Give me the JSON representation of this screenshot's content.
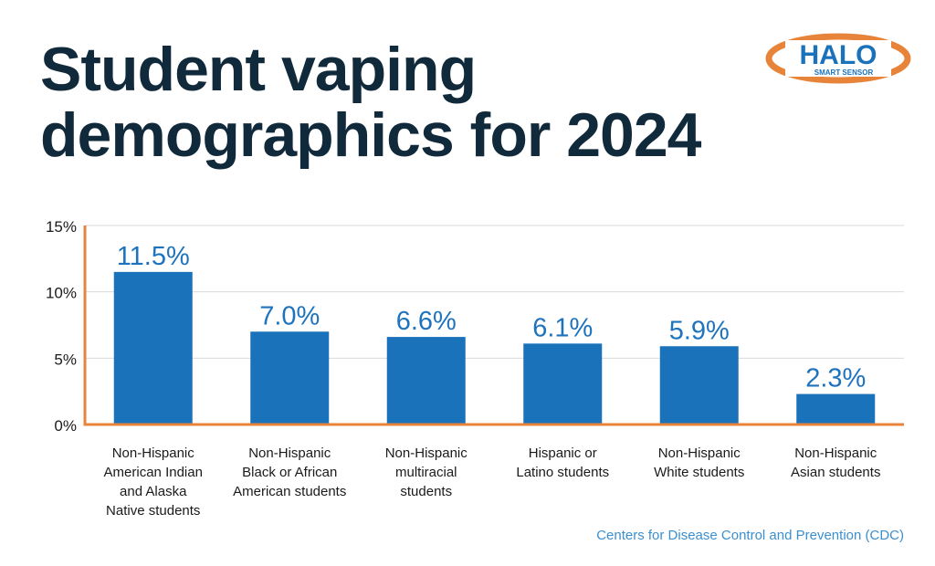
{
  "title_lines": [
    "Student vaping",
    "demographics for 2024"
  ],
  "logo": {
    "text": "HALO",
    "subtext": "SMART SENSOR",
    "colors": {
      "ring": "#e8833a",
      "text": "#1a72bb"
    }
  },
  "source": "Centers for Disease Control and Prevention (CDC)",
  "colors": {
    "bar": "#1a72bb",
    "label": "#1e73be",
    "axis": "#e8833a",
    "grid": "#d9d9d9",
    "title": "#10293b"
  },
  "chart_data": {
    "type": "bar",
    "categories": [
      [
        "Non-Hispanic",
        "American Indian",
        "and Alaska",
        "Native students"
      ],
      [
        "Non-Hispanic",
        "Black or African",
        "American students"
      ],
      [
        "Non-Hispanic",
        "multiracial",
        "students"
      ],
      [
        "Hispanic or",
        "Latino students"
      ],
      [
        "Non-Hispanic",
        "White students"
      ],
      [
        "Non-Hispanic",
        "Asian students"
      ]
    ],
    "values": [
      11.5,
      7.0,
      6.6,
      6.1,
      5.9,
      2.3
    ],
    "data_labels": [
      "11.5%",
      "7.0%",
      "6.6%",
      "6.1%",
      "5.9%",
      "2.3%"
    ],
    "yticks": [
      0,
      5,
      10,
      15
    ],
    "ytick_labels": [
      "0%",
      "5%",
      "10%",
      "15%"
    ],
    "ylim": [
      0,
      15
    ],
    "grid": true
  }
}
